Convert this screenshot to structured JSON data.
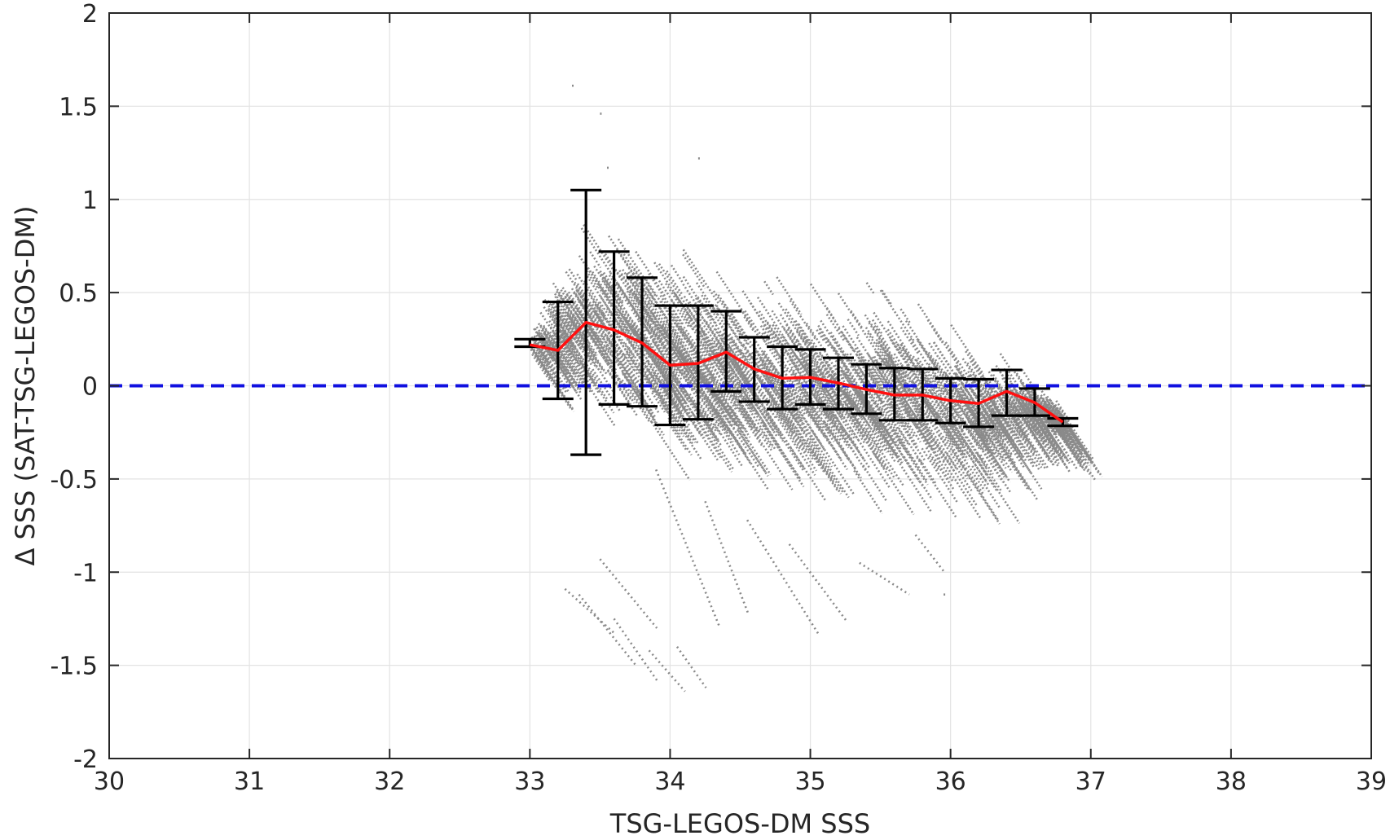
{
  "chart_data": {
    "type": "scatter",
    "title": "",
    "xlabel": "TSG-LEGOS-DM SSS",
    "ylabel": "Δ SSS (SAT-TSG-LEGOS-DM)",
    "xlim": [
      30,
      39
    ],
    "ylim": [
      -2,
      2
    ],
    "x_ticks": [
      "30",
      "31",
      "32",
      "33",
      "34",
      "35",
      "36",
      "37",
      "38",
      "39"
    ],
    "y_ticks": [
      "2",
      "1.5",
      "1",
      "0.5",
      "0",
      "-0.5",
      "-1",
      "-1.5",
      "-2"
    ],
    "grid": true,
    "reference_line": {
      "y": 0,
      "style": "dashed",
      "color": "#1010e0"
    },
    "colors": {
      "scatter": "#8a8a8a",
      "mean_line": "#ff1010",
      "error_bars": "#000000",
      "grid": "#e3e3e3",
      "axes": "#262626"
    },
    "scatter_envelope": {
      "x": [
        33.0,
        33.2,
        33.4,
        33.6,
        33.8,
        34.0,
        34.2,
        34.4,
        34.6,
        34.8,
        35.0,
        35.2,
        35.4,
        35.6,
        35.8,
        36.0,
        36.2,
        36.4,
        36.6,
        36.8
      ],
      "upper": [
        0.28,
        0.7,
        1.05,
        0.95,
        0.85,
        0.8,
        0.75,
        0.7,
        0.68,
        0.66,
        0.62,
        0.6,
        0.72,
        0.6,
        0.55,
        0.45,
        0.3,
        0.2,
        0.05,
        -0.1
      ],
      "lower": [
        0.15,
        0.05,
        -0.1,
        -0.2,
        -0.3,
        -0.35,
        -0.4,
        -0.45,
        -0.5,
        -0.5,
        -0.5,
        -0.55,
        -0.55,
        -0.55,
        -0.55,
        -0.55,
        -0.55,
        -0.3,
        -0.25,
        -0.22
      ]
    },
    "series": [
      {
        "name": "bin mean",
        "type": "errorbar",
        "x": [
          33.0,
          33.2,
          33.4,
          33.6,
          33.8,
          34.0,
          34.2,
          34.4,
          34.6,
          34.8,
          35.0,
          35.2,
          35.4,
          35.6,
          35.8,
          36.0,
          36.2,
          36.4,
          36.6,
          36.8
        ],
        "y": [
          0.22,
          0.19,
          0.34,
          0.3,
          0.23,
          0.11,
          0.12,
          0.18,
          0.09,
          0.04,
          0.045,
          0.015,
          -0.02,
          -0.05,
          -0.05,
          -0.08,
          -0.095,
          -0.03,
          -0.09,
          -0.195
        ],
        "y_upper": [
          0.25,
          0.45,
          1.05,
          0.72,
          0.58,
          0.43,
          0.43,
          0.4,
          0.26,
          0.21,
          0.195,
          0.15,
          0.115,
          0.095,
          0.09,
          0.04,
          0.035,
          0.085,
          -0.015,
          -0.175
        ],
        "y_lower": [
          0.21,
          -0.07,
          -0.37,
          -0.1,
          -0.11,
          -0.21,
          -0.18,
          -0.03,
          -0.085,
          -0.125,
          -0.1,
          -0.125,
          -0.15,
          -0.185,
          -0.185,
          -0.2,
          -0.22,
          -0.16,
          -0.16,
          -0.215
        ]
      }
    ],
    "outlier_streaks": [
      [
        [
          33.25,
          -1.09
        ],
        [
          33.6,
          -1.33
        ]
      ],
      [
        [
          33.35,
          -1.12
        ],
        [
          33.75,
          -1.5
        ]
      ],
      [
        [
          33.5,
          -0.93
        ],
        [
          33.9,
          -1.3
        ]
      ],
      [
        [
          33.6,
          -1.25
        ],
        [
          33.9,
          -1.58
        ]
      ],
      [
        [
          33.85,
          -1.42
        ],
        [
          34.1,
          -1.64
        ]
      ],
      [
        [
          34.05,
          -1.4
        ],
        [
          34.25,
          -1.62
        ]
      ],
      [
        [
          33.9,
          -0.45
        ],
        [
          34.35,
          -1.3
        ]
      ],
      [
        [
          34.25,
          -0.62
        ],
        [
          34.55,
          -1.22
        ]
      ],
      [
        [
          34.55,
          -0.72
        ],
        [
          35.05,
          -1.33
        ]
      ],
      [
        [
          34.85,
          -0.85
        ],
        [
          35.25,
          -1.26
        ]
      ],
      [
        [
          35.35,
          -0.95
        ],
        [
          35.7,
          -1.12
        ]
      ],
      [
        [
          35.75,
          -0.8
        ],
        [
          35.95,
          -1.0
        ]
      ],
      [
        [
          35.95,
          -1.12
        ],
        [
          35.96,
          -1.12
        ]
      ],
      [
        [
          33.3,
          1.61
        ],
        [
          33.31,
          1.61
        ]
      ],
      [
        [
          33.5,
          1.46
        ],
        [
          33.51,
          1.46
        ]
      ],
      [
        [
          34.2,
          1.22
        ],
        [
          34.21,
          1.22
        ]
      ],
      [
        [
          33.55,
          1.17
        ],
        [
          33.56,
          1.17
        ]
      ]
    ]
  }
}
